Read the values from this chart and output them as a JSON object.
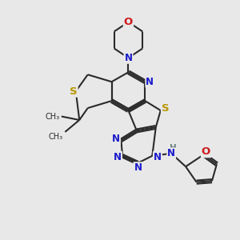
{
  "bg_color": "#e8e8e8",
  "bond_color": "#2a2a2a",
  "bond_lw": 1.5,
  "dbl_off": 0.06,
  "atom_colors": {
    "N": "#1a1acc",
    "O": "#cc1a1a",
    "S": "#b89600",
    "H": "#6a8080",
    "C": "#2a2a2a"
  },
  "afs": 8.5,
  "figsize": [
    3.0,
    3.0
  ],
  "dpi": 100
}
